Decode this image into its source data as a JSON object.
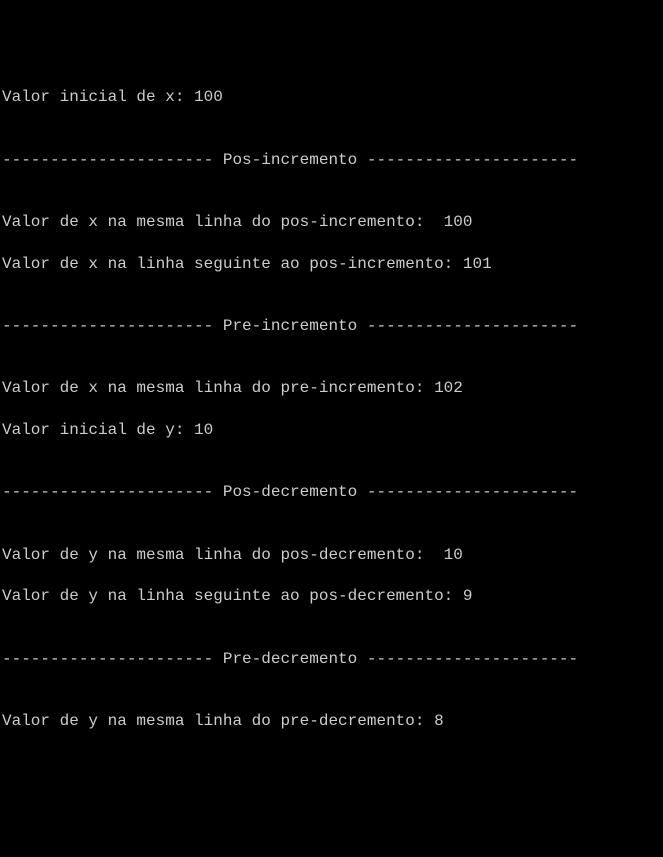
{
  "colors": {
    "background": "#000000",
    "text": "#cccccc"
  },
  "font": {
    "family": "Consolas, Courier New, monospace",
    "size": 16
  },
  "lines": {
    "l1": "Valor inicial de x: 100",
    "l2": "",
    "l3": "---------------------- Pos-incremento ----------------------",
    "l4": "",
    "l5": "Valor de x na mesma linha do pos-incremento:  100",
    "l6": "Valor de x na linha seguinte ao pos-incremento: 101",
    "l7": "",
    "l8": "---------------------- Pre-incremento ----------------------",
    "l9": "",
    "l10": "Valor de x na mesma linha do pre-incremento: 102",
    "l11": "Valor inicial de y: 10",
    "l12": "",
    "l13": "---------------------- Pos-decremento ----------------------",
    "l14": "",
    "l15": "Valor de y na mesma linha do pos-decremento:  10",
    "l16": "Valor de y na linha seguinte ao pos-decremento: 9",
    "l17": "",
    "l18": "---------------------- Pre-decremento ----------------------",
    "l19": "",
    "l20": "Valor de y na mesma linha do pre-decremento: 8",
    "l21": ""
  }
}
